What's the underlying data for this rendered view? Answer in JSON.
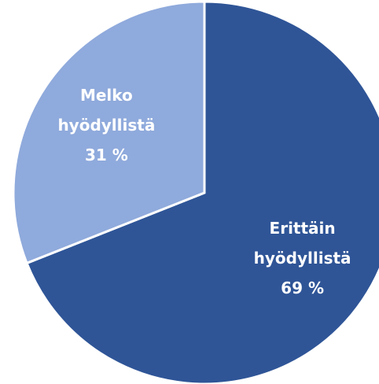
{
  "chart_data": {
    "type": "pie",
    "categories": [
      "Erittäin hyödyllistä",
      "Melko hyödyllistä"
    ],
    "values": [
      69,
      31
    ],
    "value_labels": [
      "69 %",
      "31 %"
    ],
    "colors": [
      "#2f5597",
      "#8faadc"
    ]
  }
}
